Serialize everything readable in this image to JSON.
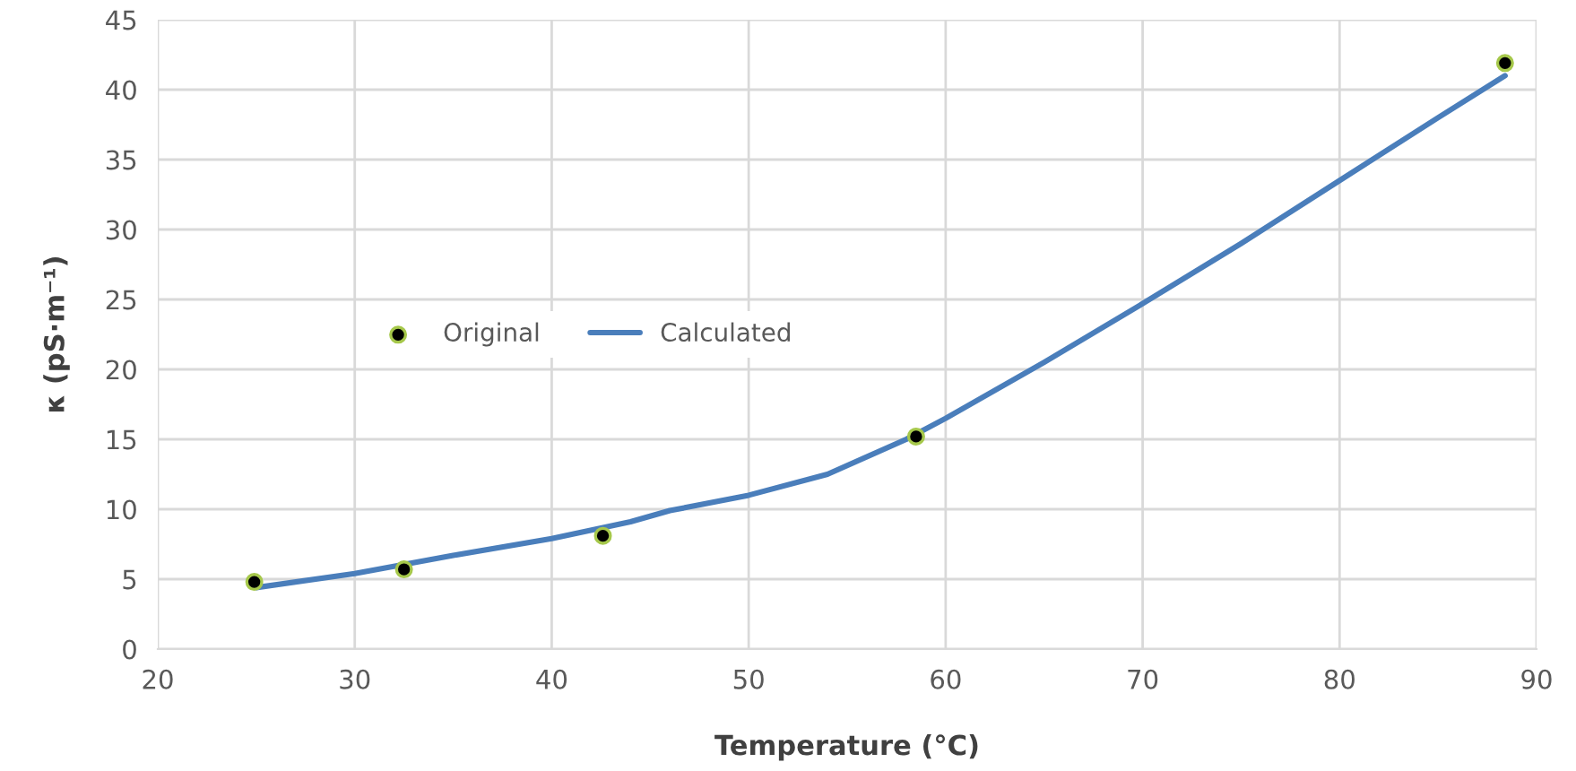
{
  "chart_data": {
    "type": "scatter",
    "xlabel": "Temperature (°C)",
    "ylabel": "κ (pS·m⁻¹)",
    "xlim": [
      20,
      90
    ],
    "xticks": [
      20,
      30,
      40,
      50,
      60,
      70,
      80,
      90
    ],
    "ylim": [
      0,
      45
    ],
    "yticks": [
      0,
      5,
      10,
      15,
      20,
      25,
      30,
      35,
      40,
      45
    ],
    "grid": true,
    "legend": "left",
    "series": [
      {
        "name": "Original",
        "type": "scatter",
        "marker": "circle",
        "color": "#000000",
        "x": [
          24.9,
          32.5,
          42.6,
          58.5,
          88.4
        ],
        "values": [
          4.8,
          5.7,
          8.1,
          15.2,
          41.9
        ]
      },
      {
        "name": "Calculated",
        "type": "line",
        "color": "#4a7ebb",
        "x": [
          25,
          30,
          35,
          40,
          44,
          46,
          50,
          54,
          58,
          60,
          65,
          70,
          75,
          80,
          85,
          88.4
        ],
        "values": [
          4.4,
          5.4,
          6.7,
          7.9,
          9.1,
          9.9,
          11,
          12.5,
          15,
          16.5,
          20.5,
          24.7,
          29,
          33.5,
          38,
          41
        ]
      }
    ]
  }
}
